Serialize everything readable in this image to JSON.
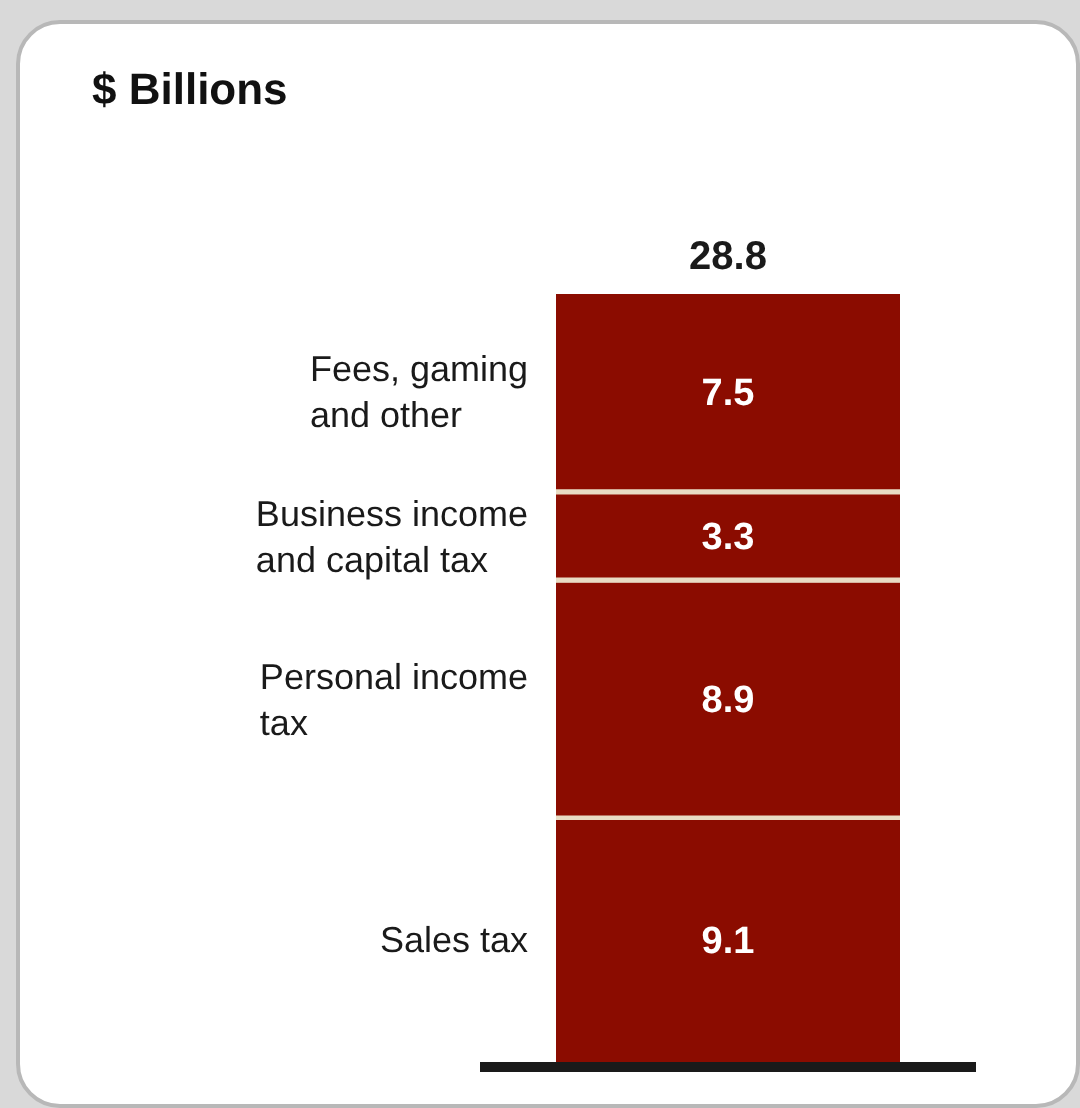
{
  "chart_data": {
    "type": "bar",
    "title": "$ Billions",
    "categories": [
      null
    ],
    "stacked": true,
    "data_labels": true,
    "totals": [
      "28.8"
    ],
    "series": [
      {
        "name": "Sales tax",
        "color": "#8b0c00",
        "values": [
          9.1
        ]
      },
      {
        "name": "Personal income tax",
        "color": "#8b0c00",
        "values": [
          8.9
        ]
      },
      {
        "name": "Business income and capital tax",
        "color": "#8b0c00",
        "values": [
          3.3
        ]
      },
      {
        "name": "Fees, gaming and other",
        "color": "#8b0c00",
        "values": [
          7.5
        ]
      }
    ]
  }
}
